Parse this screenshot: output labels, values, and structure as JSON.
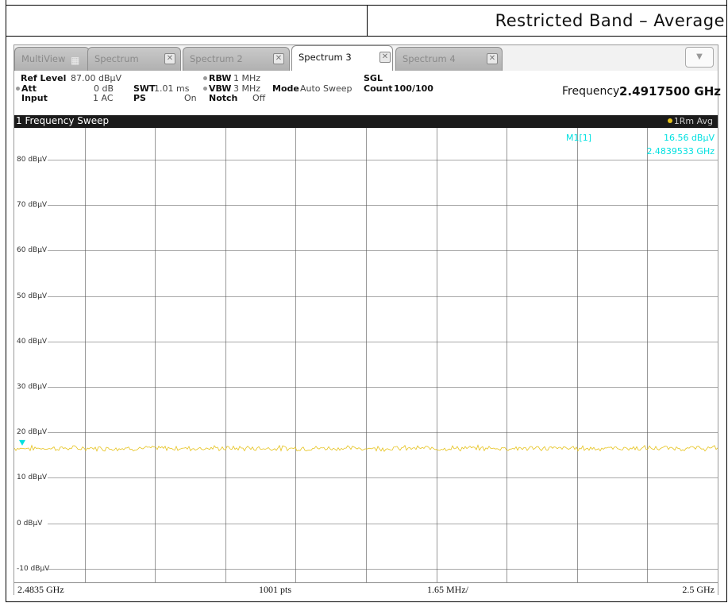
{
  "document": {
    "title": "Restricted Band – Average"
  },
  "tabs": [
    {
      "label": "MultiView",
      "active": false
    },
    {
      "label": "Spectrum",
      "active": false
    },
    {
      "label": "Spectrum 2",
      "active": false
    },
    {
      "label": "Spectrum 3",
      "active": true
    },
    {
      "label": "Spectrum 4",
      "active": false
    }
  ],
  "dropdown_icon": "chevron-down-icon",
  "settings": {
    "ref_level_label": "Ref Level",
    "ref_level_value": "87.00 dBµV",
    "att_label": "Att",
    "att_value": "0 dB",
    "swt_label": "SWT",
    "swt_value": "1.01 ms",
    "input_label": "Input",
    "input_value": "1 AC",
    "ps_label": "PS",
    "ps_value": "On",
    "rbw_label": "RBW",
    "rbw_value": "1 MHz",
    "vbw_label": "VBW",
    "vbw_value": "3 MHz",
    "notch_label": "Notch",
    "notch_value": "Off",
    "mode_label": "Mode",
    "mode_value": "Auto Sweep",
    "sgl_label": "SGL",
    "count_label": "Count",
    "count_value": "100/100",
    "frequency_label": "Frequency",
    "frequency_value": "2.4917500 GHz"
  },
  "sweep": {
    "title": "1 Frequency Sweep",
    "trace_label": "1Rm Avg",
    "trace_color": "#e6c21a"
  },
  "marker": {
    "name": "M1[1]",
    "level": "16.56 dBµV",
    "frequency": "2.4839533 GHz",
    "color": "#00e0e0"
  },
  "y_axis": {
    "labels": [
      "80 dBµV",
      "70 dBµV",
      "60 dBµV",
      "50 dBµV",
      "40 dBµV",
      "30 dBµV",
      "20 dBµV",
      "10 dBµV",
      "0 dBµV",
      "-10 dBµV"
    ],
    "values": [
      80,
      70,
      60,
      50,
      40,
      30,
      20,
      10,
      0,
      -10
    ],
    "ref_level": 87,
    "min": -13
  },
  "footer": {
    "start": "2.4835 GHz",
    "points": "1001 pts",
    "span_per_div": "1.65 MHz/",
    "stop": "2.5 GHz"
  },
  "trace_level_dbuv": 16.5
}
